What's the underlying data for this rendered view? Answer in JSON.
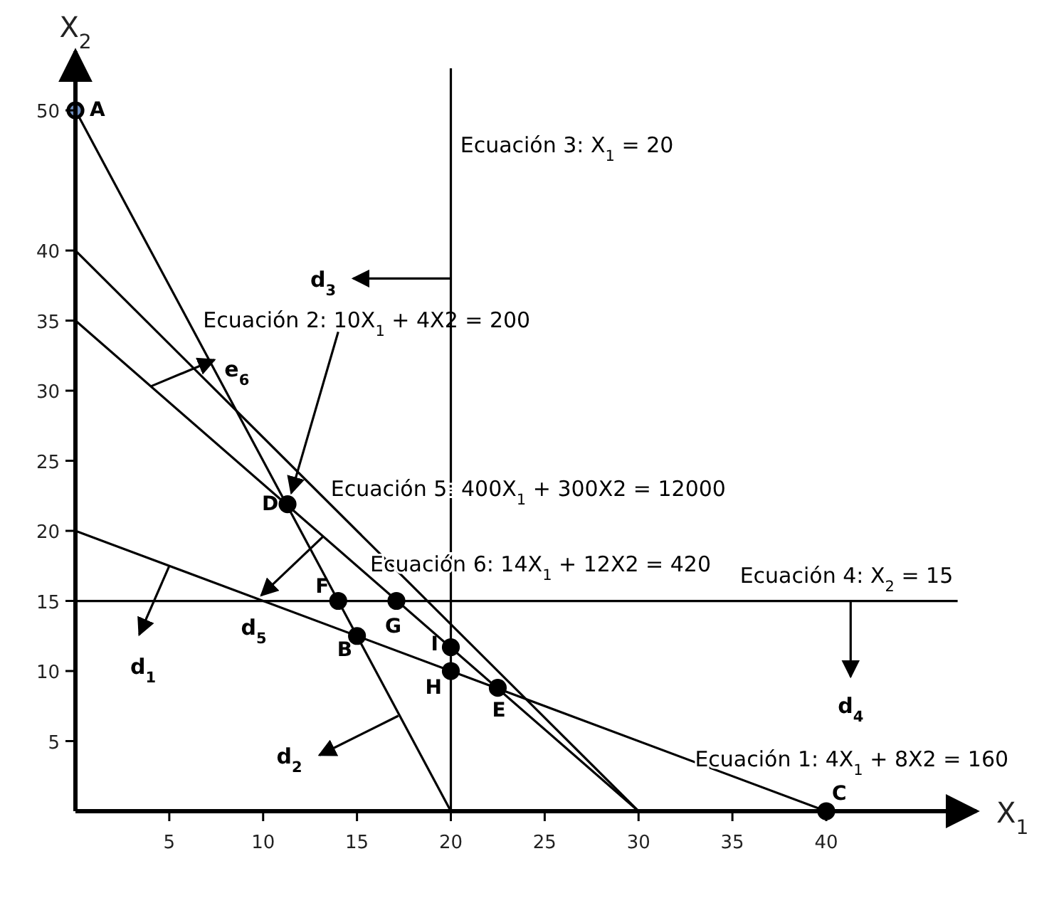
{
  "chart_data": {
    "type": "line",
    "xlabel": "X$_{1}$",
    "ylabel": "X$_{2}$",
    "xlim": [
      0,
      48
    ],
    "ylim": [
      0,
      53
    ],
    "xticks": [
      5,
      10,
      15,
      20,
      25,
      30,
      35,
      40
    ],
    "yticks": [
      5,
      10,
      15,
      20,
      25,
      30,
      35,
      40,
      50
    ],
    "grid": false,
    "legend": false,
    "marker": "none",
    "line_style": "solid",
    "series": [
      {
        "name": "Ecuación 1: 4X$_{1}$ + 8X2 = 160",
        "color": "#000000",
        "x": [
          0,
          40
        ],
        "values": [
          20,
          0
        ]
      },
      {
        "name": "Ecuación 2: 10X$_{1}$ + 4X2 = 200",
        "color": "#000000",
        "x": [
          0,
          20
        ],
        "values": [
          50,
          0
        ]
      },
      {
        "name": "Ecuación 3: X$_{1}$ = 20",
        "color": "#000000",
        "x": [
          20,
          20
        ],
        "values": [
          0,
          53
        ]
      },
      {
        "name": "Ecuación 4: X$_{2}$ = 15",
        "color": "#000000",
        "x": [
          0,
          47
        ],
        "values": [
          15,
          15
        ]
      },
      {
        "name": "Ecuación 5: 400X$_{1}$ + 300X2 = 12000",
        "color": "#000000",
        "x": [
          0,
          30
        ],
        "values": [
          40,
          0
        ]
      },
      {
        "name": "Ecuación 6: 14X$_{1}$ + 12X2 = 420",
        "color": "#000000",
        "x": [
          0,
          30
        ],
        "values": [
          35,
          0
        ]
      },
      {
        "type": "scatter",
        "marker": "circle",
        "color": "#000000",
        "x": [
          0,
          15,
          40,
          11.3,
          22.5,
          14,
          17.1,
          20,
          20
        ],
        "values": [
          50,
          12.5,
          0,
          21.9,
          8.8,
          15,
          15,
          10,
          11.7
        ],
        "colors": [
          "#6f8fc0",
          "#000000",
          "#000000",
          "#000000",
          "#000000",
          "#000000",
          "#000000",
          "#000000",
          "#000000"
        ]
      }
    ],
    "annotations": [
      {
        "text": "A",
        "x": 0,
        "y": 50
      },
      {
        "text": "B",
        "x": 15,
        "y": 12.5
      },
      {
        "text": "C",
        "x": 40,
        "y": 0
      },
      {
        "text": "D",
        "x": 11.3,
        "y": 21.9
      },
      {
        "text": "E",
        "x": 22.5,
        "y": 8.8
      },
      {
        "text": "F",
        "x": 14,
        "y": 15
      },
      {
        "text": "G",
        "x": 17.1,
        "y": 15
      },
      {
        "text": "H",
        "x": 20,
        "y": 10
      },
      {
        "text": "I",
        "x": 20,
        "y": 11.7
      },
      "d$_{1}$",
      "d$_{2}$",
      "d$_{3}$",
      "d$_{4}$",
      "d$_{5}$",
      "e$_{6}$"
    ]
  }
}
